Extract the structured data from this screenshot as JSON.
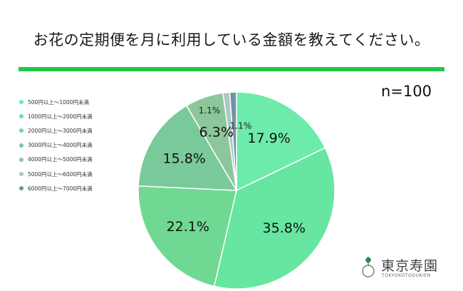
{
  "title": "お花の定期便を月に利用している金額を教えてください。",
  "sample_size": "n=100",
  "brand": {
    "name": "東京寿園",
    "sub": "TOKYOKOTODUKIEN"
  },
  "chart_data": {
    "type": "pie",
    "title": "お花の定期便を月に利用している金額を教えてください。",
    "start_angle": "12 o'clock",
    "direction": "clockwise",
    "legend_position": "left",
    "slices": [
      {
        "label": "500円以上～1000円未満",
        "value": 17.9,
        "display": "17.9%",
        "color": "#6cebab"
      },
      {
        "label": "1000円以上～2000円未満",
        "value": 35.8,
        "display": "35.8%",
        "color": "#66e6a0"
      },
      {
        "label": "2000円以上～3000円未満",
        "value": 22.1,
        "display": "22.1%",
        "color": "#6fd993"
      },
      {
        "label": "3000円以上～4000円未満",
        "value": 15.8,
        "display": "15.8%",
        "color": "#7ac99a"
      },
      {
        "label": "4000円以上～5000円未満",
        "value": 6.3,
        "display": "6.3%",
        "color": "#8ec69c"
      },
      {
        "label": "5000円以上～6000円未満",
        "value": 1.1,
        "display": "1.1%",
        "color": "#a9c7c4"
      },
      {
        "label": "6000円以上～7000円未満",
        "value": 1.1,
        "display": "1.1%",
        "color": "#6e94a6"
      }
    ]
  }
}
